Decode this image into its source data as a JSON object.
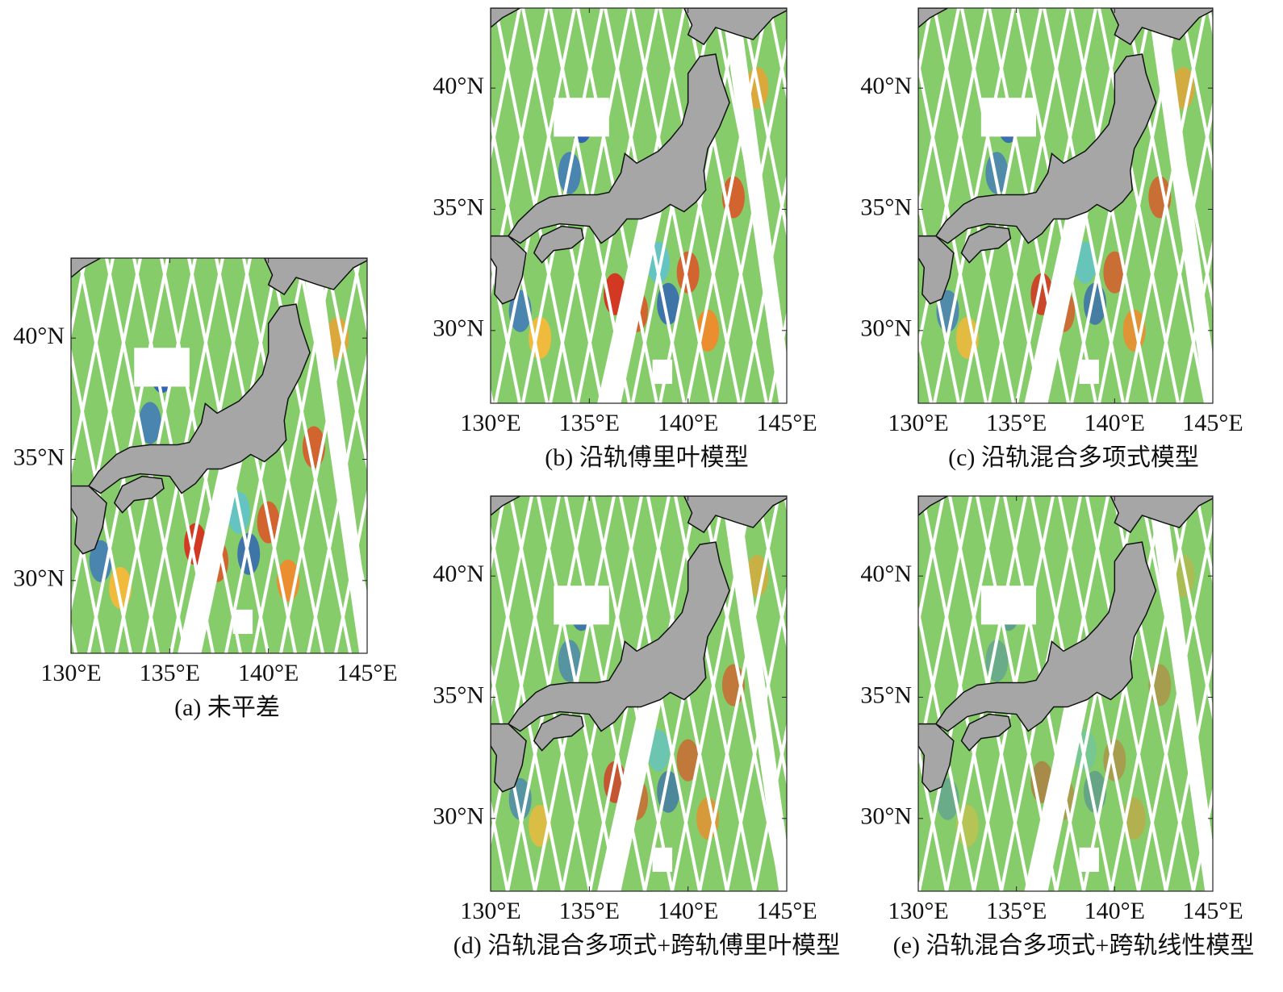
{
  "panels": [
    {
      "caption": "(a) 未平差",
      "xlim": [
        130,
        145
      ],
      "ylim": [
        27,
        43.3
      ],
      "xticks": [
        {
          "value": 130,
          "label": "130°E"
        },
        {
          "value": 135,
          "label": "135°E"
        },
        {
          "value": 140,
          "label": "140°E"
        },
        {
          "value": 145,
          "label": "145°E"
        }
      ],
      "yticks": [
        {
          "value": 30,
          "label": "30°N"
        },
        {
          "value": 35,
          "label": "35°N"
        },
        {
          "value": 40,
          "label": "40°N"
        }
      ]
    },
    {
      "caption": "(b) 沿轨傅里叶模型",
      "xlim": [
        130,
        145
      ],
      "ylim": [
        27,
        43.3
      ],
      "xticks": [
        {
          "value": 130,
          "label": "130°E"
        },
        {
          "value": 135,
          "label": "135°E"
        },
        {
          "value": 140,
          "label": "140°E"
        },
        {
          "value": 145,
          "label": "145°E"
        }
      ],
      "yticks": [
        {
          "value": 30,
          "label": "30°N"
        },
        {
          "value": 35,
          "label": "35°N"
        },
        {
          "value": 40,
          "label": "40°N"
        }
      ]
    },
    {
      "caption": "(c) 沿轨混合多项式模型",
      "xlim": [
        130,
        145
      ],
      "ylim": [
        27,
        43.3
      ],
      "xticks": [
        {
          "value": 130,
          "label": "130°E"
        },
        {
          "value": 135,
          "label": "135°E"
        },
        {
          "value": 140,
          "label": "140°E"
        },
        {
          "value": 145,
          "label": "145°E"
        }
      ],
      "yticks": [
        {
          "value": 30,
          "label": "30°N"
        },
        {
          "value": 35,
          "label": "35°N"
        },
        {
          "value": 40,
          "label": "40°N"
        }
      ]
    },
    {
      "caption": "(d) 沿轨混合多项式+跨轨傅里叶模型",
      "xlim": [
        130,
        145
      ],
      "ylim": [
        27,
        43.3
      ],
      "xticks": [
        {
          "value": 130,
          "label": "130°E"
        },
        {
          "value": 135,
          "label": "135°E"
        },
        {
          "value": 140,
          "label": "140°E"
        },
        {
          "value": 145,
          "label": "145°E"
        }
      ],
      "yticks": [
        {
          "value": 30,
          "label": "30°N"
        },
        {
          "value": 35,
          "label": "35°N"
        },
        {
          "value": 40,
          "label": "40°N"
        }
      ]
    },
    {
      "caption": "(e) 沿轨混合多项式+跨轨线性模型",
      "xlim": [
        130,
        145
      ],
      "ylim": [
        27,
        43.3
      ],
      "xticks": [
        {
          "value": 130,
          "label": "130°E"
        },
        {
          "value": 135,
          "label": "135°E"
        },
        {
          "value": 140,
          "label": "140°E"
        },
        {
          "value": 145,
          "label": "145°E"
        }
      ],
      "yticks": [
        {
          "value": 30,
          "label": "30°N"
        },
        {
          "value": 35,
          "label": "35°N"
        },
        {
          "value": 40,
          "label": "40°N"
        }
      ]
    }
  ]
}
